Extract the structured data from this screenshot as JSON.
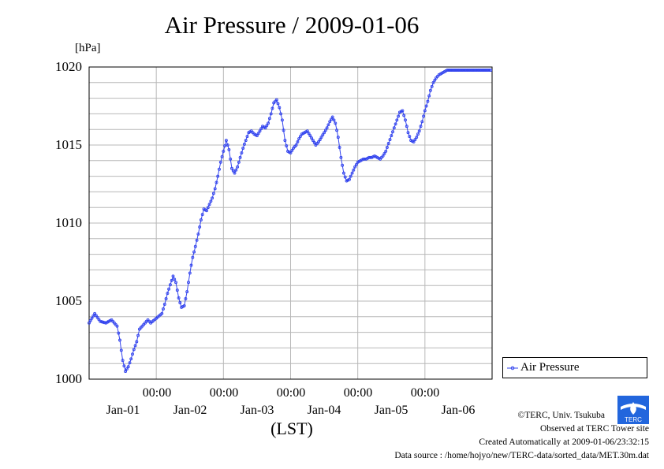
{
  "chart_data": {
    "type": "line",
    "title": "Air Pressure / 2009-01-06",
    "ylabel": "[hPa]",
    "xlabel": "(LST)",
    "ylim": [
      1000,
      1020
    ],
    "yticks": [
      "1000",
      "1005",
      "1010",
      "1015",
      "1020"
    ],
    "xlim_hours": [
      0,
      144
    ],
    "xtick_hours": [
      24,
      48,
      72,
      96,
      120
    ],
    "xtick_time_labels": [
      "00:00",
      "00:00",
      "00:00",
      "00:00",
      "00:00"
    ],
    "xdate_labels": [
      "Jan-01",
      "Jan-02",
      "Jan-03",
      "Jan-04",
      "Jan-05",
      "Jan-06"
    ],
    "xdate_hours": [
      12,
      36,
      60,
      84,
      108,
      132
    ],
    "legend": "Air Pressure",
    "legend_position": "bottom-right",
    "grid": true,
    "color": "#3344ee",
    "series": [
      {
        "name": "Air Pressure",
        "keypoints_hours": [
          0,
          2,
          4,
          6,
          8,
          10,
          11,
          12,
          13,
          14,
          15,
          16,
          17,
          18,
          20,
          21,
          22,
          24,
          26,
          27,
          28,
          30,
          31,
          32,
          33,
          34,
          35,
          36,
          37,
          38,
          38.5,
          39,
          40,
          41,
          42,
          44,
          45,
          46,
          47,
          48,
          49,
          50,
          51,
          52,
          53,
          54,
          55,
          56,
          57,
          58,
          59,
          60,
          61,
          62,
          63,
          64,
          65,
          66,
          67,
          68,
          69,
          70,
          71,
          72,
          73,
          74,
          75,
          76,
          77,
          78,
          79,
          80,
          81,
          82,
          83,
          84,
          85,
          86,
          87,
          88,
          89,
          90,
          91,
          92,
          93,
          94,
          95,
          96,
          97,
          98,
          99,
          100,
          101,
          102,
          103,
          104,
          105,
          106,
          107,
          108,
          109,
          110,
          111,
          112,
          113,
          114,
          115,
          116,
          117,
          118,
          119,
          120,
          121,
          122,
          123,
          124,
          125,
          126,
          127,
          128,
          129,
          130,
          131,
          132,
          133,
          134,
          135,
          136,
          137,
          138,
          139,
          140,
          141,
          142,
          143,
          144
        ],
        "keypoints_values": [
          1003.6,
          1004.2,
          1003.7,
          1003.6,
          1003.8,
          1003.4,
          1002.5,
          1001.2,
          1000.5,
          1000.8,
          1001.3,
          1001.9,
          1002.4,
          1003.2,
          1003.6,
          1003.8,
          1003.6,
          1003.9,
          1004.2,
          1004.8,
          1005.5,
          1006.6,
          1006.2,
          1005.2,
          1004.6,
          1004.7,
          1005.6,
          1006.8,
          1007.8,
          1008.5,
          1008.9,
          1009.3,
          1010.2,
          1010.9,
          1010.8,
          1011.6,
          1012.2,
          1013.0,
          1013.9,
          1014.6,
          1015.3,
          1014.7,
          1013.5,
          1013.2,
          1013.6,
          1014.2,
          1014.8,
          1015.3,
          1015.8,
          1015.9,
          1015.7,
          1015.6,
          1015.9,
          1016.2,
          1016.1,
          1016.4,
          1017.0,
          1017.7,
          1017.9,
          1017.4,
          1016.6,
          1015.3,
          1014.6,
          1014.5,
          1014.8,
          1015.0,
          1015.4,
          1015.7,
          1015.8,
          1015.9,
          1015.6,
          1015.3,
          1015.0,
          1015.2,
          1015.5,
          1015.8,
          1016.1,
          1016.5,
          1016.8,
          1016.4,
          1015.5,
          1014.2,
          1013.2,
          1012.7,
          1012.8,
          1013.2,
          1013.6,
          1013.9,
          1014.0,
          1014.1,
          1014.1,
          1014.2,
          1014.2,
          1014.3,
          1014.2,
          1014.1,
          1014.3,
          1014.6,
          1015.1,
          1015.6,
          1016.1,
          1016.6,
          1017.1,
          1017.2,
          1016.6,
          1015.8,
          1015.3,
          1015.2,
          1015.5,
          1015.9,
          1016.5,
          1017.2,
          1017.8,
          1018.5,
          1019.0,
          1019.3,
          1019.5,
          1019.6,
          1019.7,
          1019.8,
          1019.8,
          1019.8,
          1019.8,
          1019.8,
          1019.8,
          1019.8,
          1019.8,
          1019.8,
          1019.8,
          1019.8,
          1019.8,
          1019.8,
          1019.8,
          1019.8,
          1019.8,
          1019.8
        ],
        "sample_interval_hours": 0.5
      }
    ]
  },
  "credits": {
    "line1": "©TERC, Univ. Tsukuba",
    "line2": "Observed at TERC Tower site",
    "line3": "Created Automatically at 2009-01-06/23:32:15",
    "line4": "Data source : /home/hojyo/new/TERC-data/sorted_data/MET.30m.dat"
  },
  "logo": {
    "text": "TERC",
    "color": "#2266dd"
  }
}
